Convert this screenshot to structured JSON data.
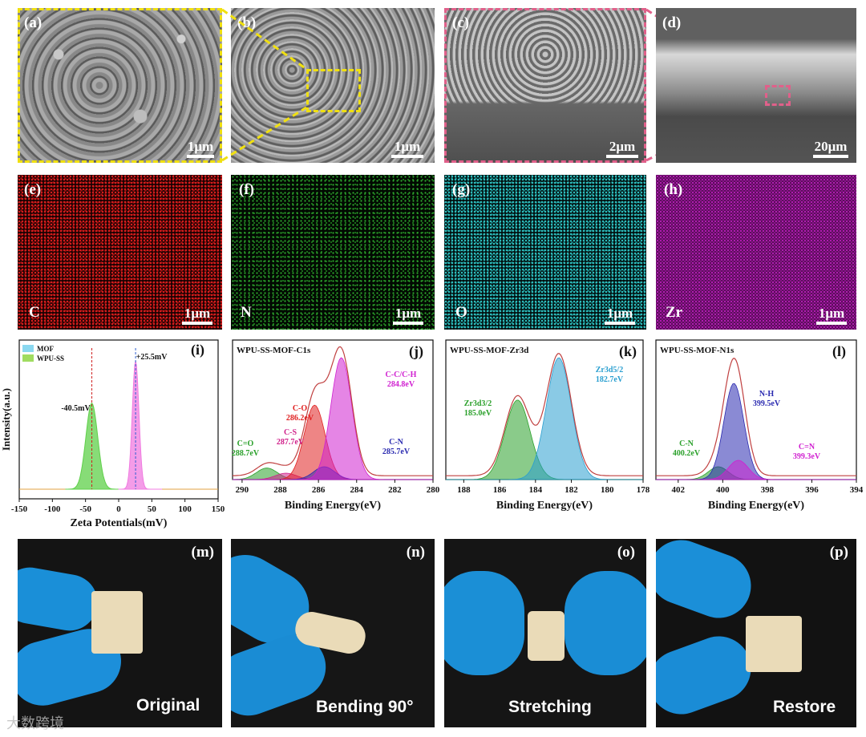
{
  "sem": [
    {
      "label": "(a)",
      "scale": "1μm",
      "frame": "yellow"
    },
    {
      "label": "(b)",
      "scale": "1μm",
      "frame": "none"
    },
    {
      "label": "(c)",
      "scale": "2μm",
      "frame": "pink"
    },
    {
      "label": "(d)",
      "scale": "20μm",
      "frame": "none"
    }
  ],
  "eds": [
    {
      "label": "(e)",
      "element": "C",
      "scale": "1μm",
      "color": "#d81e1e"
    },
    {
      "label": "(f)",
      "element": "N",
      "scale": "1μm",
      "color": "#2fae2f"
    },
    {
      "label": "(g)",
      "element": "O",
      "scale": "1μm",
      "color": "#2fbfbf"
    },
    {
      "label": "(h)",
      "element": "Zr",
      "scale": "1μm",
      "color": "#b01cb0"
    }
  ],
  "photos": [
    {
      "label": "(m)",
      "caption": "Original"
    },
    {
      "label": "(n)",
      "caption": "Bending 90°"
    },
    {
      "label": "(o)",
      "caption": "Stretching"
    },
    {
      "label": "(p)",
      "caption": "Restore"
    }
  ],
  "watermark": "大数跨境",
  "chart_data": [
    {
      "panel": "(i)",
      "type": "area",
      "xlabel": "Zeta Potentials(mV)",
      "ylabel": "Intensity(a.u.)",
      "xlim": [
        -150,
        150
      ],
      "xticks": [
        "-150",
        "-100",
        "-50",
        "0",
        "50",
        "100",
        "150"
      ],
      "legend": [
        "MOF",
        "WPU-SS"
      ],
      "series": [
        {
          "name": "MOF",
          "peak_x": 25.5,
          "peak_label": "+25.5mV",
          "color": "#f07be0"
        },
        {
          "name": "WPU-SS",
          "peak_x": -40.5,
          "peak_label": "-40.5mV",
          "color": "#5fd04a"
        }
      ]
    },
    {
      "panel": "(j)",
      "type": "line",
      "title": "WPU-SS-MOF-C1s",
      "xlabel": "Binding Energy(eV)",
      "xlim": [
        290.5,
        280
      ],
      "xticks": [
        "290",
        "288",
        "286",
        "284",
        "282",
        "280"
      ],
      "peaks": [
        {
          "name": "C=O",
          "value": "288.7eV",
          "x": 288.7,
          "h": 0.09,
          "color": "#2aa02a"
        },
        {
          "name": "C-S",
          "value": "287.7eV",
          "x": 287.7,
          "h": 0.05,
          "color": "#d0208a"
        },
        {
          "name": "C-O",
          "value": "286.2eV",
          "x": 286.2,
          "h": 0.58,
          "color": "#e02020"
        },
        {
          "name": "C-N",
          "value": "285.7eV",
          "x": 285.7,
          "h": 0.1,
          "color": "#2a2ab0"
        },
        {
          "name": "C-C/C-H",
          "value": "284.8eV",
          "x": 284.8,
          "h": 0.95,
          "color": "#d020d0"
        }
      ]
    },
    {
      "panel": "(k)",
      "type": "line",
      "title": "WPU-SS-MOF-Zr3d",
      "xlabel": "Binding Energy(eV)",
      "xlim": [
        189,
        178
      ],
      "xticks": [
        "188",
        "186",
        "184",
        "182",
        "180",
        "178"
      ],
      "peaks": [
        {
          "name": "Zr3d3/2",
          "value": "185.0eV",
          "x": 185.0,
          "h": 0.62,
          "color": "#2aa02a"
        },
        {
          "name": "Zr3d5/2",
          "value": "182.7eV",
          "x": 182.7,
          "h": 0.95,
          "color": "#2a9fd0"
        }
      ]
    },
    {
      "panel": "(l)",
      "type": "line",
      "title": "WPU-SS-MOF-N1s",
      "xlabel": "Binding Energy(eV)",
      "xlim": [
        403,
        394
      ],
      "xticks": [
        "402",
        "400",
        "398",
        "396",
        "394"
      ],
      "peaks": [
        {
          "name": "C-N",
          "value": "400.2eV",
          "x": 400.2,
          "h": 0.1,
          "color": "#2aa02a"
        },
        {
          "name": "N-H",
          "value": "399.5eV",
          "x": 399.5,
          "h": 0.75,
          "color": "#2a2ab0"
        },
        {
          "name": "C=N",
          "value": "399.3eV",
          "x": 399.3,
          "h": 0.15,
          "color": "#d020d0"
        }
      ]
    }
  ]
}
